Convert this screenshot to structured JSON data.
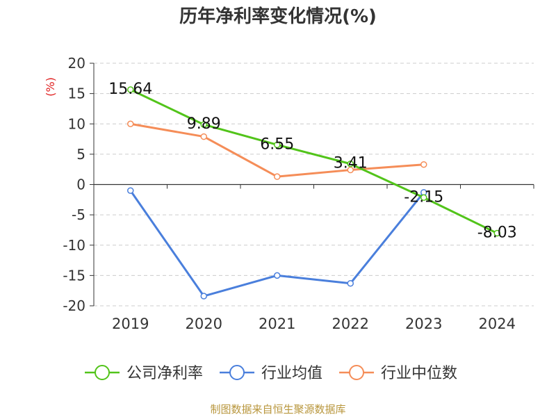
{
  "chart_data": {
    "type": "line",
    "title": "历年净利率变化情况(%)",
    "ylabel": "(%)",
    "xlabel": "",
    "categories": [
      "2019",
      "2020",
      "2021",
      "2022",
      "2023",
      "2024"
    ],
    "ylim": [
      -20,
      20
    ],
    "yticks": [
      20,
      15,
      10,
      5,
      0,
      -5,
      -10,
      -15,
      -20
    ],
    "ytick_labels": [
      "20",
      "15",
      "10",
      "5",
      "0",
      "-5",
      "-10",
      "-15",
      "-20"
    ],
    "grid": true,
    "legend_position": "bottom",
    "series": [
      {
        "name": "公司净利率",
        "color": "#52c41a",
        "values": [
          15.64,
          9.89,
          6.55,
          3.41,
          -2.15,
          -8.03
        ],
        "labels": [
          "15.64",
          "9.89",
          "6.55",
          "3.41",
          "-2.15",
          "-8.03"
        ]
      },
      {
        "name": "行业均值",
        "color": "#4a7fdc",
        "values": [
          -1.0,
          -18.4,
          -15.0,
          -16.3,
          -1.3,
          null
        ]
      },
      {
        "name": "行业中位数",
        "color": "#f58d58",
        "values": [
          10.0,
          7.9,
          1.3,
          2.4,
          3.3,
          null
        ]
      }
    ]
  },
  "footer": {
    "source": "制图数据来自恒生聚源数据库"
  }
}
